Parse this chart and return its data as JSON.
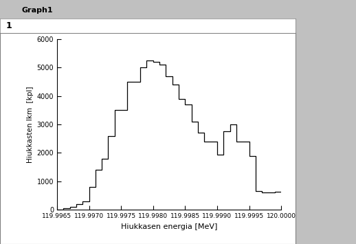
{
  "title": "Graph1",
  "xlabel": "Hiukkasen energia [MeV]",
  "ylabel": "Hiukkasten lkm  [kpl]",
  "xlim": [
    119.9965,
    120.0
  ],
  "ylim": [
    0,
    6000
  ],
  "xticks": [
    119.9965,
    119.997,
    119.9975,
    119.998,
    119.9985,
    119.999,
    119.9995,
    120.0
  ],
  "xtick_labels": [
    "119.9965",
    "119.9970",
    "119.9975",
    "119.9980",
    "119.9985",
    "119.9990",
    "119.9995",
    "120.0000"
  ],
  "yticks": [
    0,
    1000,
    2000,
    3000,
    4000,
    5000,
    6000
  ],
  "bin_edges": [
    119.9965,
    119.9966,
    119.9967,
    119.9968,
    119.9969,
    119.997,
    119.9971,
    119.9972,
    119.9973,
    119.9974,
    119.9975,
    119.9976,
    119.9977,
    119.9978,
    119.9979,
    119.998,
    119.9981,
    119.9982,
    119.9983,
    119.9984,
    119.9985,
    119.9986,
    119.9987,
    119.9988,
    119.9989,
    119.999,
    119.9991,
    119.9992,
    119.9993,
    119.9994,
    119.9995,
    119.9996,
    119.9997,
    119.9998,
    119.9999,
    120.0
  ],
  "counts": [
    0,
    50,
    100,
    200,
    300,
    800,
    1400,
    1800,
    2600,
    3500,
    3500,
    4500,
    4500,
    5000,
    5250,
    5200,
    5100,
    4700,
    4400,
    3900,
    3700,
    3100,
    2700,
    2400,
    2400,
    1950,
    2750,
    3000,
    2400,
    2400,
    1900,
    650,
    620,
    600,
    630
  ],
  "line_color": "#000000",
  "bg_color": "#ffffff",
  "titlebar_color": "#aabbd4",
  "window_bg": "#c0c0c0",
  "right_panel_color": "#c0c0c0",
  "plot_border_color": "#808080"
}
